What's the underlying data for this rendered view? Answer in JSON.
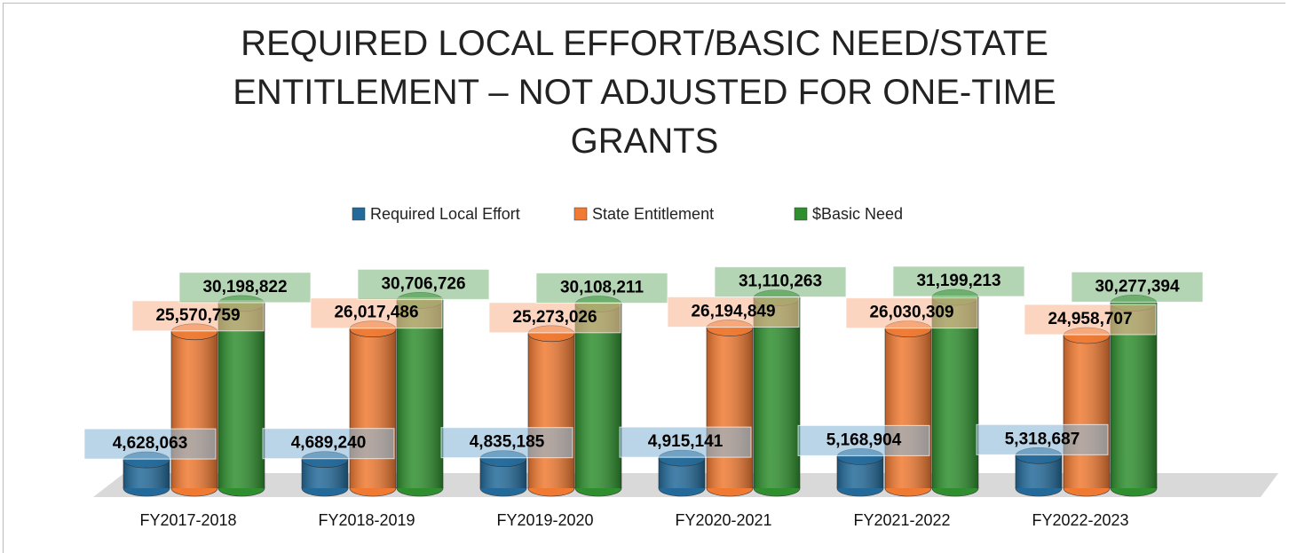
{
  "chart_data": {
    "type": "bar3d",
    "title": "REQUIRED LOCAL EFFORT/BASIC NEED/STATE ENTITLEMENT – NOT ADJUSTED FOR ONE-TIME GRANTS",
    "categories": [
      "FY2017-2018",
      "FY2018-2019",
      "FY2019-2020",
      "FY2020-2021",
      "FY2021-2022",
      "FY2022-2023"
    ],
    "series": [
      {
        "name": "Required Local Effort",
        "color": "#236a9a",
        "values": [
          4628063,
          4689240,
          4835185,
          4915141,
          5168904,
          5318687
        ],
        "value_labels": [
          "4,628,063",
          "4,689,240",
          "4,835,185",
          "4,915,141",
          "5,168,904",
          "5,318,687"
        ]
      },
      {
        "name": "State Entitlement",
        "color": "#f07a32",
        "values": [
          25570759,
          26017486,
          25273026,
          26194849,
          26030309,
          24958707
        ],
        "value_labels": [
          "25,570,759",
          "26,017,486",
          "25,273,026",
          "26,194,849",
          "26,030,309",
          "24,958,707"
        ]
      },
      {
        "name": "$Basic Need",
        "color": "#2f8f2f",
        "values": [
          30198822,
          30706726,
          30108211,
          31110263,
          31199213,
          30277394
        ],
        "value_labels": [
          "30,198,822",
          "30,706,726",
          "30,108,211",
          "31,110,263",
          "31,199,213",
          "30,277,394"
        ]
      }
    ],
    "legend": "top"
  }
}
